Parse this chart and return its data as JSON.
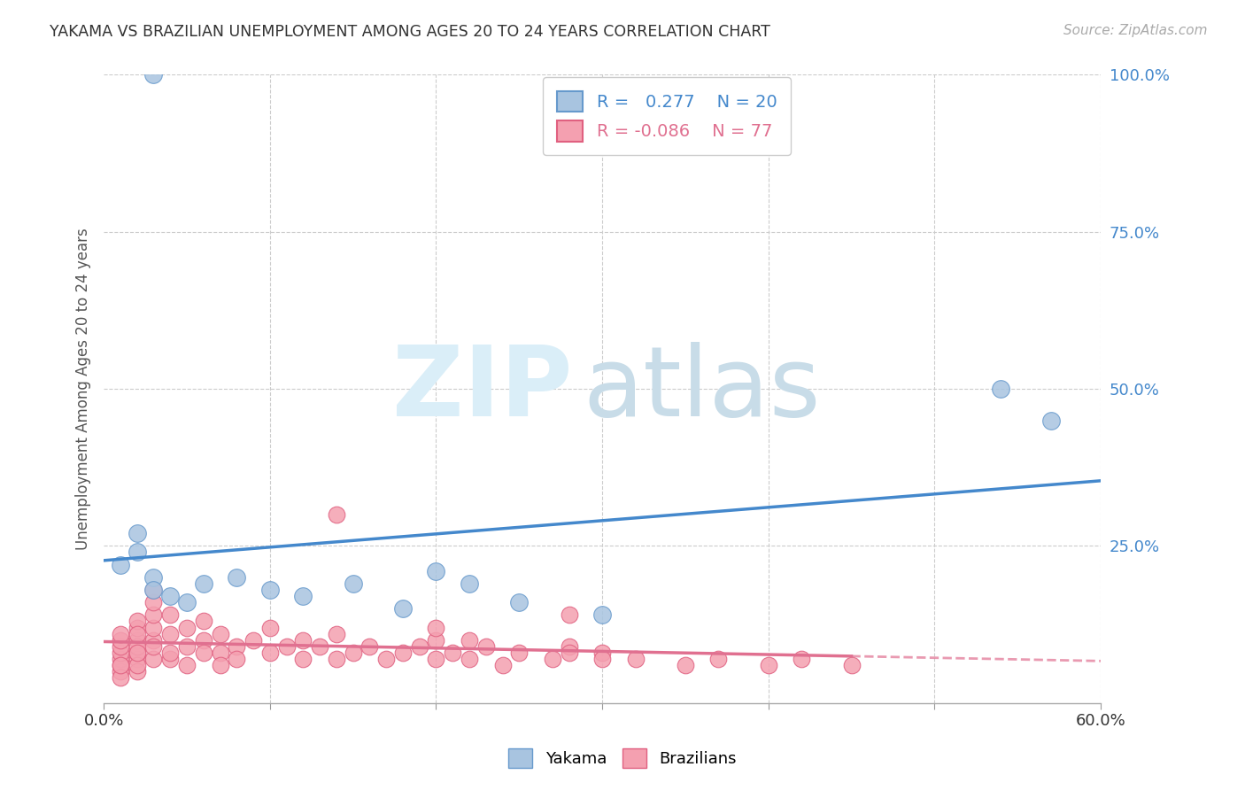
{
  "title": "YAKAMA VS BRAZILIAN UNEMPLOYMENT AMONG AGES 20 TO 24 YEARS CORRELATION CHART",
  "source": "Source: ZipAtlas.com",
  "ylabel": "Unemployment Among Ages 20 to 24 years",
  "xlim": [
    0.0,
    0.6
  ],
  "ylim": [
    0.0,
    1.0
  ],
  "grid_color": "#cccccc",
  "background_color": "#ffffff",
  "yakama_color": "#a8c4e0",
  "brazilians_color": "#f4a0b0",
  "yakama_edge_color": "#6699cc",
  "brazilians_edge_color": "#e06080",
  "trend_yakama_color": "#4488cc",
  "trend_brazilians_color": "#e07090",
  "legend_R_yakama": "0.277",
  "legend_N_yakama": "20",
  "legend_R_brazilians": "-0.086",
  "legend_N_brazilians": "77",
  "yakama_x": [
    0.01,
    0.02,
    0.02,
    0.03,
    0.03,
    0.04,
    0.05,
    0.06,
    0.08,
    0.1,
    0.12,
    0.15,
    0.18,
    0.2,
    0.22,
    0.25,
    0.3,
    0.54,
    0.57,
    0.03
  ],
  "yakama_y": [
    0.22,
    0.27,
    0.24,
    0.2,
    0.18,
    0.17,
    0.16,
    0.19,
    0.2,
    0.18,
    0.17,
    0.19,
    0.15,
    0.21,
    0.19,
    0.16,
    0.14,
    0.5,
    0.45,
    1.0
  ],
  "brazilians_x": [
    0.01,
    0.01,
    0.01,
    0.01,
    0.01,
    0.01,
    0.01,
    0.01,
    0.01,
    0.02,
    0.02,
    0.02,
    0.02,
    0.02,
    0.02,
    0.02,
    0.02,
    0.02,
    0.02,
    0.03,
    0.03,
    0.03,
    0.03,
    0.03,
    0.03,
    0.03,
    0.04,
    0.04,
    0.04,
    0.04,
    0.05,
    0.05,
    0.05,
    0.06,
    0.06,
    0.06,
    0.07,
    0.07,
    0.07,
    0.08,
    0.08,
    0.09,
    0.1,
    0.1,
    0.11,
    0.12,
    0.12,
    0.13,
    0.14,
    0.14,
    0.15,
    0.16,
    0.17,
    0.18,
    0.19,
    0.2,
    0.2,
    0.21,
    0.22,
    0.23,
    0.24,
    0.25,
    0.27,
    0.28,
    0.3,
    0.32,
    0.35,
    0.37,
    0.4,
    0.42,
    0.45,
    0.14,
    0.2,
    0.22,
    0.28,
    0.3,
    0.28
  ],
  "brazilians_y": [
    0.05,
    0.07,
    0.06,
    0.08,
    0.09,
    0.1,
    0.04,
    0.11,
    0.06,
    0.07,
    0.08,
    0.1,
    0.12,
    0.05,
    0.09,
    0.13,
    0.06,
    0.11,
    0.08,
    0.1,
    0.12,
    0.14,
    0.07,
    0.09,
    0.16,
    0.18,
    0.07,
    0.11,
    0.14,
    0.08,
    0.09,
    0.12,
    0.06,
    0.1,
    0.13,
    0.08,
    0.08,
    0.11,
    0.06,
    0.09,
    0.07,
    0.1,
    0.08,
    0.12,
    0.09,
    0.1,
    0.07,
    0.09,
    0.07,
    0.11,
    0.08,
    0.09,
    0.07,
    0.08,
    0.09,
    0.07,
    0.1,
    0.08,
    0.07,
    0.09,
    0.06,
    0.08,
    0.07,
    0.09,
    0.08,
    0.07,
    0.06,
    0.07,
    0.06,
    0.07,
    0.06,
    0.3,
    0.12,
    0.1,
    0.08,
    0.07,
    0.14
  ]
}
